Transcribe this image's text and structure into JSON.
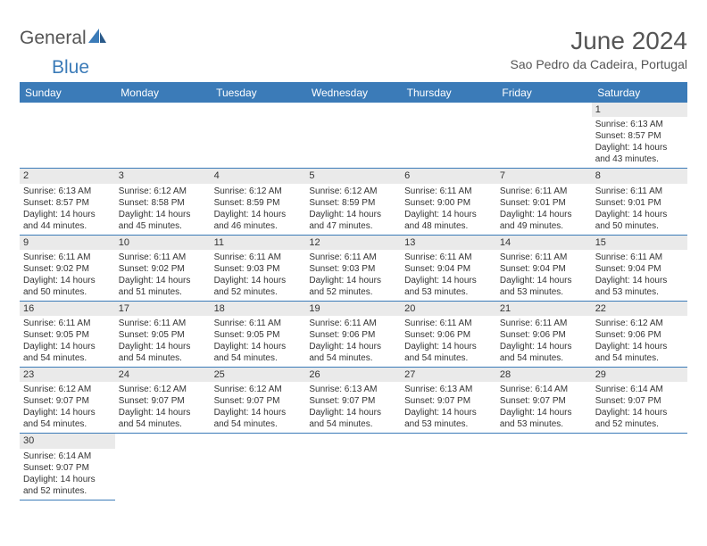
{
  "logo": {
    "text1": "General",
    "text2": "Blue"
  },
  "title": "June 2024",
  "location": "Sao Pedro da Cadeira, Portugal",
  "colors": {
    "header_bg": "#3b7bb8",
    "header_text": "#ffffff",
    "body_text": "#333333",
    "title_text": "#555555",
    "daynum_bg": "#eaeaea",
    "border": "#3b7bb8"
  },
  "typography": {
    "title_fontsize": 28,
    "location_fontsize": 14,
    "dayheader_fontsize": 12,
    "daynum_fontsize": 11,
    "cell_fontsize": 10
  },
  "day_headers": [
    "Sunday",
    "Monday",
    "Tuesday",
    "Wednesday",
    "Thursday",
    "Friday",
    "Saturday"
  ],
  "weeks": [
    [
      null,
      null,
      null,
      null,
      null,
      null,
      {
        "n": "1",
        "sunrise": "Sunrise: 6:13 AM",
        "sunset": "Sunset: 8:57 PM",
        "d1": "Daylight: 14 hours",
        "d2": "and 43 minutes."
      }
    ],
    [
      {
        "n": "2",
        "sunrise": "Sunrise: 6:13 AM",
        "sunset": "Sunset: 8:57 PM",
        "d1": "Daylight: 14 hours",
        "d2": "and 44 minutes."
      },
      {
        "n": "3",
        "sunrise": "Sunrise: 6:12 AM",
        "sunset": "Sunset: 8:58 PM",
        "d1": "Daylight: 14 hours",
        "d2": "and 45 minutes."
      },
      {
        "n": "4",
        "sunrise": "Sunrise: 6:12 AM",
        "sunset": "Sunset: 8:59 PM",
        "d1": "Daylight: 14 hours",
        "d2": "and 46 minutes."
      },
      {
        "n": "5",
        "sunrise": "Sunrise: 6:12 AM",
        "sunset": "Sunset: 8:59 PM",
        "d1": "Daylight: 14 hours",
        "d2": "and 47 minutes."
      },
      {
        "n": "6",
        "sunrise": "Sunrise: 6:11 AM",
        "sunset": "Sunset: 9:00 PM",
        "d1": "Daylight: 14 hours",
        "d2": "and 48 minutes."
      },
      {
        "n": "7",
        "sunrise": "Sunrise: 6:11 AM",
        "sunset": "Sunset: 9:01 PM",
        "d1": "Daylight: 14 hours",
        "d2": "and 49 minutes."
      },
      {
        "n": "8",
        "sunrise": "Sunrise: 6:11 AM",
        "sunset": "Sunset: 9:01 PM",
        "d1": "Daylight: 14 hours",
        "d2": "and 50 minutes."
      }
    ],
    [
      {
        "n": "9",
        "sunrise": "Sunrise: 6:11 AM",
        "sunset": "Sunset: 9:02 PM",
        "d1": "Daylight: 14 hours",
        "d2": "and 50 minutes."
      },
      {
        "n": "10",
        "sunrise": "Sunrise: 6:11 AM",
        "sunset": "Sunset: 9:02 PM",
        "d1": "Daylight: 14 hours",
        "d2": "and 51 minutes."
      },
      {
        "n": "11",
        "sunrise": "Sunrise: 6:11 AM",
        "sunset": "Sunset: 9:03 PM",
        "d1": "Daylight: 14 hours",
        "d2": "and 52 minutes."
      },
      {
        "n": "12",
        "sunrise": "Sunrise: 6:11 AM",
        "sunset": "Sunset: 9:03 PM",
        "d1": "Daylight: 14 hours",
        "d2": "and 52 minutes."
      },
      {
        "n": "13",
        "sunrise": "Sunrise: 6:11 AM",
        "sunset": "Sunset: 9:04 PM",
        "d1": "Daylight: 14 hours",
        "d2": "and 53 minutes."
      },
      {
        "n": "14",
        "sunrise": "Sunrise: 6:11 AM",
        "sunset": "Sunset: 9:04 PM",
        "d1": "Daylight: 14 hours",
        "d2": "and 53 minutes."
      },
      {
        "n": "15",
        "sunrise": "Sunrise: 6:11 AM",
        "sunset": "Sunset: 9:04 PM",
        "d1": "Daylight: 14 hours",
        "d2": "and 53 minutes."
      }
    ],
    [
      {
        "n": "16",
        "sunrise": "Sunrise: 6:11 AM",
        "sunset": "Sunset: 9:05 PM",
        "d1": "Daylight: 14 hours",
        "d2": "and 54 minutes."
      },
      {
        "n": "17",
        "sunrise": "Sunrise: 6:11 AM",
        "sunset": "Sunset: 9:05 PM",
        "d1": "Daylight: 14 hours",
        "d2": "and 54 minutes."
      },
      {
        "n": "18",
        "sunrise": "Sunrise: 6:11 AM",
        "sunset": "Sunset: 9:05 PM",
        "d1": "Daylight: 14 hours",
        "d2": "and 54 minutes."
      },
      {
        "n": "19",
        "sunrise": "Sunrise: 6:11 AM",
        "sunset": "Sunset: 9:06 PM",
        "d1": "Daylight: 14 hours",
        "d2": "and 54 minutes."
      },
      {
        "n": "20",
        "sunrise": "Sunrise: 6:11 AM",
        "sunset": "Sunset: 9:06 PM",
        "d1": "Daylight: 14 hours",
        "d2": "and 54 minutes."
      },
      {
        "n": "21",
        "sunrise": "Sunrise: 6:11 AM",
        "sunset": "Sunset: 9:06 PM",
        "d1": "Daylight: 14 hours",
        "d2": "and 54 minutes."
      },
      {
        "n": "22",
        "sunrise": "Sunrise: 6:12 AM",
        "sunset": "Sunset: 9:06 PM",
        "d1": "Daylight: 14 hours",
        "d2": "and 54 minutes."
      }
    ],
    [
      {
        "n": "23",
        "sunrise": "Sunrise: 6:12 AM",
        "sunset": "Sunset: 9:07 PM",
        "d1": "Daylight: 14 hours",
        "d2": "and 54 minutes."
      },
      {
        "n": "24",
        "sunrise": "Sunrise: 6:12 AM",
        "sunset": "Sunset: 9:07 PM",
        "d1": "Daylight: 14 hours",
        "d2": "and 54 minutes."
      },
      {
        "n": "25",
        "sunrise": "Sunrise: 6:12 AM",
        "sunset": "Sunset: 9:07 PM",
        "d1": "Daylight: 14 hours",
        "d2": "and 54 minutes."
      },
      {
        "n": "26",
        "sunrise": "Sunrise: 6:13 AM",
        "sunset": "Sunset: 9:07 PM",
        "d1": "Daylight: 14 hours",
        "d2": "and 54 minutes."
      },
      {
        "n": "27",
        "sunrise": "Sunrise: 6:13 AM",
        "sunset": "Sunset: 9:07 PM",
        "d1": "Daylight: 14 hours",
        "d2": "and 53 minutes."
      },
      {
        "n": "28",
        "sunrise": "Sunrise: 6:14 AM",
        "sunset": "Sunset: 9:07 PM",
        "d1": "Daylight: 14 hours",
        "d2": "and 53 minutes."
      },
      {
        "n": "29",
        "sunrise": "Sunrise: 6:14 AM",
        "sunset": "Sunset: 9:07 PM",
        "d1": "Daylight: 14 hours",
        "d2": "and 52 minutes."
      }
    ],
    [
      {
        "n": "30",
        "sunrise": "Sunrise: 6:14 AM",
        "sunset": "Sunset: 9:07 PM",
        "d1": "Daylight: 14 hours",
        "d2": "and 52 minutes."
      },
      null,
      null,
      null,
      null,
      null,
      null
    ]
  ]
}
